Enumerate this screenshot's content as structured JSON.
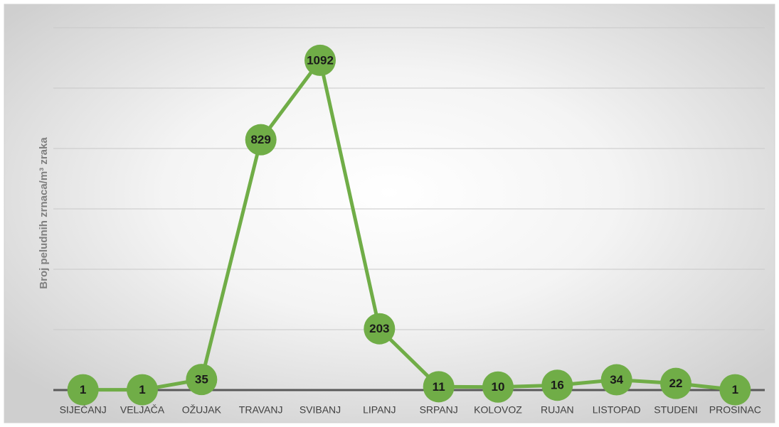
{
  "chart_data": {
    "type": "line",
    "y_label": "Broj peludnih zrnaca/m³ zraka",
    "categories": [
      "SIJEČANJ",
      "VELJAČA",
      "OŽUJAK",
      "TRAVANJ",
      "SVIBANJ",
      "LIPANJ",
      "SRPANJ",
      "KOLOVOZ",
      "RUJAN",
      "LISTOPAD",
      "STUDENI",
      "PROSINAC"
    ],
    "values": [
      1,
      1,
      35,
      829,
      1092,
      203,
      11,
      10,
      16,
      34,
      22,
      1
    ],
    "color": "#70ad47",
    "ylim": [
      0,
      1200
    ],
    "yticks": [
      0,
      200,
      400,
      600,
      800,
      1000,
      1200
    ],
    "grid": true
  }
}
